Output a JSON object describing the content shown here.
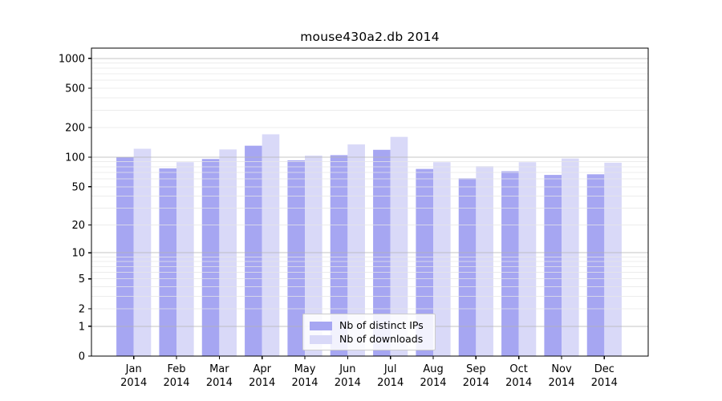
{
  "title": "mouse430a2.db 2014",
  "chart_data": {
    "type": "bar",
    "title": "mouse430a2.db 2014",
    "categories": [
      "Jan",
      "Feb",
      "Mar",
      "Apr",
      "May",
      "Jun",
      "Jul",
      "Aug",
      "Sep",
      "Oct",
      "Nov",
      "Dec"
    ],
    "category_year": "2014",
    "series": [
      {
        "name": "Nb of distinct IPs",
        "color": "#a6a6f2",
        "values": [
          100,
          77,
          96,
          131,
          93,
          105,
          119,
          76,
          61,
          72,
          66,
          67
        ]
      },
      {
        "name": "Nb of downloads",
        "color": "#d9d9f8",
        "values": [
          122,
          89,
          120,
          171,
          104,
          135,
          161,
          89,
          81,
          89,
          97,
          88
        ]
      }
    ],
    "xlabel": "",
    "ylabel": "",
    "yscale": "log1p",
    "ylim": [
      0,
      1270
    ],
    "yticks": [
      0,
      1,
      2,
      5,
      10,
      20,
      50,
      100,
      200,
      500,
      1000
    ],
    "grid": {
      "major": true,
      "minor": true
    },
    "legend_position": "lower center",
    "colors": {
      "major_grid": "#b3b3b3",
      "minor_grid": "#e6e6e6",
      "axis": "#000000",
      "tick_text": "#000000",
      "legend_border": "#cccccc"
    }
  },
  "legend": {
    "items": [
      "Nb of distinct IPs",
      "Nb of downloads"
    ]
  }
}
